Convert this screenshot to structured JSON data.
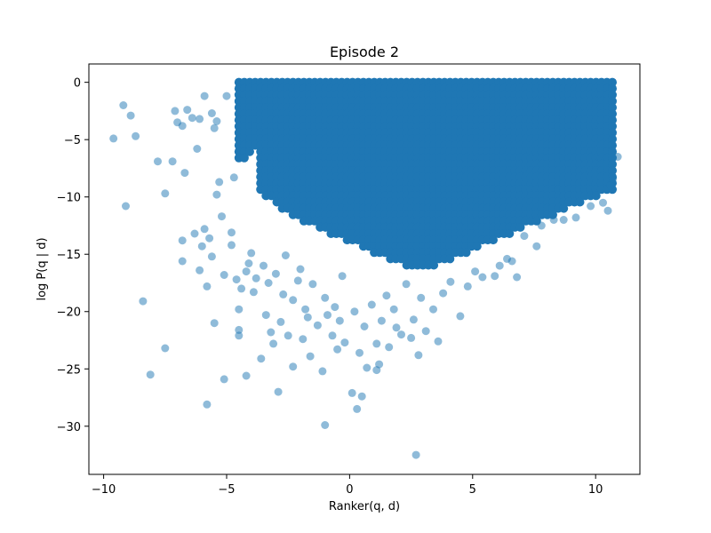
{
  "chart_data": {
    "type": "scatter",
    "title": "Episode 2",
    "xlabel": "Ranker(q, d)",
    "ylabel": "log P(q | d)",
    "xlim": [
      -10.6,
      11.8
    ],
    "ylim": [
      -34.2,
      1.6
    ],
    "xticks": [
      -10,
      -5,
      0,
      5,
      10
    ],
    "yticks": [
      0,
      -5,
      -10,
      -15,
      -20,
      -25,
      -30
    ],
    "xtick_labels": [
      "−10",
      "−5",
      "0",
      "5",
      "10"
    ],
    "ytick_labels": [
      "0",
      "−5",
      "−10",
      "−15",
      "−20",
      "−25",
      "−30"
    ],
    "grid": false,
    "series": [
      {
        "name": "Episode 2",
        "color": "#1f77b4",
        "alpha": 0.5,
        "points": [
          [
            -9.6,
            -4.9
          ],
          [
            -9.2,
            -2.0
          ],
          [
            -9.1,
            -10.8
          ],
          [
            -8.9,
            -2.9
          ],
          [
            -8.7,
            -4.7
          ],
          [
            -8.4,
            -19.1
          ],
          [
            -8.1,
            -25.5
          ],
          [
            -7.8,
            -6.9
          ],
          [
            -7.5,
            -9.7
          ],
          [
            -7.5,
            -23.2
          ],
          [
            -7.2,
            -6.9
          ],
          [
            -7.1,
            -2.5
          ],
          [
            -7.0,
            -3.5
          ],
          [
            -6.8,
            -3.8
          ],
          [
            -6.8,
            -13.8
          ],
          [
            -6.8,
            -15.6
          ],
          [
            -6.7,
            -7.9
          ],
          [
            -6.6,
            -2.4
          ],
          [
            -6.4,
            -3.1
          ],
          [
            -6.3,
            -13.2
          ],
          [
            -6.2,
            -5.8
          ],
          [
            -6.1,
            -3.2
          ],
          [
            -6.1,
            -16.4
          ],
          [
            -6.0,
            -14.3
          ],
          [
            -5.9,
            -1.2
          ],
          [
            -5.9,
            -12.8
          ],
          [
            -5.8,
            -17.8
          ],
          [
            -5.8,
            -28.1
          ],
          [
            -5.7,
            -13.6
          ],
          [
            -5.6,
            -2.7
          ],
          [
            -5.6,
            -15.2
          ],
          [
            -5.5,
            -4.0
          ],
          [
            -5.5,
            -21.0
          ],
          [
            -5.4,
            -3.4
          ],
          [
            -5.4,
            -9.8
          ],
          [
            -5.3,
            -8.7
          ],
          [
            -5.2,
            -11.7
          ],
          [
            -5.1,
            -16.8
          ],
          [
            -5.1,
            -25.9
          ],
          [
            -5.0,
            -1.2
          ],
          [
            -4.8,
            -13.1
          ],
          [
            -4.8,
            -14.2
          ],
          [
            -4.7,
            -8.3
          ],
          [
            -4.6,
            -17.2
          ],
          [
            -4.5,
            -19.8
          ],
          [
            -4.5,
            -22.1
          ],
          [
            -4.5,
            -21.6
          ],
          [
            -4.4,
            -18.0
          ],
          [
            -4.2,
            -25.6
          ],
          [
            -4.2,
            -16.5
          ],
          [
            -4.1,
            -15.8
          ],
          [
            -4.0,
            -14.9
          ],
          [
            -3.9,
            -18.3
          ],
          [
            -3.8,
            -17.1
          ],
          [
            -3.6,
            -24.1
          ],
          [
            -3.5,
            -16.0
          ],
          [
            -3.4,
            -20.3
          ],
          [
            -3.3,
            -17.5
          ],
          [
            -3.2,
            -21.8
          ],
          [
            -3.1,
            -22.8
          ],
          [
            -3.0,
            -16.7
          ],
          [
            -2.9,
            -27.0
          ],
          [
            -2.8,
            -20.9
          ],
          [
            -2.7,
            -18.5
          ],
          [
            -2.6,
            -15.1
          ],
          [
            -2.5,
            -22.1
          ],
          [
            -2.3,
            -19.0
          ],
          [
            -2.3,
            -24.8
          ],
          [
            -2.1,
            -17.3
          ],
          [
            -2.0,
            -16.3
          ],
          [
            -1.9,
            -22.4
          ],
          [
            -1.8,
            -19.8
          ],
          [
            -1.7,
            -20.5
          ],
          [
            -1.6,
            -23.9
          ],
          [
            -1.5,
            -17.6
          ],
          [
            -1.3,
            -21.2
          ],
          [
            -1.1,
            -25.2
          ],
          [
            -1.0,
            -29.9
          ],
          [
            -1.0,
            -18.8
          ],
          [
            -0.9,
            -20.3
          ],
          [
            -0.7,
            -22.1
          ],
          [
            -0.6,
            -19.6
          ],
          [
            -0.5,
            -23.3
          ],
          [
            -0.4,
            -20.8
          ],
          [
            -0.3,
            -16.9
          ],
          [
            -0.2,
            -22.7
          ],
          [
            0.1,
            -27.1
          ],
          [
            0.2,
            -20.0
          ],
          [
            0.3,
            -28.5
          ],
          [
            0.5,
            -27.4
          ],
          [
            0.4,
            -23.6
          ],
          [
            0.6,
            -21.3
          ],
          [
            0.7,
            -24.9
          ],
          [
            0.9,
            -19.4
          ],
          [
            1.1,
            -22.8
          ],
          [
            1.1,
            -25.1
          ],
          [
            1.2,
            -24.6
          ],
          [
            1.3,
            -20.8
          ],
          [
            1.5,
            -18.6
          ],
          [
            1.6,
            -23.1
          ],
          [
            1.8,
            -19.8
          ],
          [
            1.9,
            -21.4
          ],
          [
            2.1,
            -22.0
          ],
          [
            2.3,
            -17.6
          ],
          [
            2.5,
            -22.3
          ],
          [
            2.6,
            -20.7
          ],
          [
            2.7,
            -32.5
          ],
          [
            2.8,
            -23.8
          ],
          [
            2.9,
            -18.8
          ],
          [
            3.1,
            -21.7
          ],
          [
            3.4,
            -19.8
          ],
          [
            3.6,
            -22.6
          ],
          [
            3.8,
            -18.4
          ],
          [
            4.1,
            -17.4
          ],
          [
            4.5,
            -20.4
          ],
          [
            4.8,
            -17.8
          ],
          [
            5.1,
            -16.5
          ],
          [
            5.4,
            -17.0
          ],
          [
            5.9,
            -16.9
          ],
          [
            6.1,
            -16.0
          ],
          [
            6.4,
            -15.4
          ],
          [
            6.6,
            -15.6
          ],
          [
            6.8,
            -17.0
          ],
          [
            7.1,
            -13.4
          ],
          [
            7.6,
            -14.3
          ],
          [
            7.8,
            -12.5
          ],
          [
            8.3,
            -12.0
          ],
          [
            8.7,
            -12.0
          ],
          [
            9.2,
            -11.8
          ],
          [
            9.8,
            -10.8
          ],
          [
            10.3,
            -10.5
          ],
          [
            10.5,
            -11.2
          ],
          [
            10.7,
            -8.4
          ],
          [
            10.9,
            -6.5
          ],
          [
            10.6,
            -9.0
          ]
        ]
      }
    ],
    "dense_region": {
      "description_free": true,
      "x_range": [
        -4.5,
        10.9
      ],
      "y_top": 0.0
    }
  }
}
